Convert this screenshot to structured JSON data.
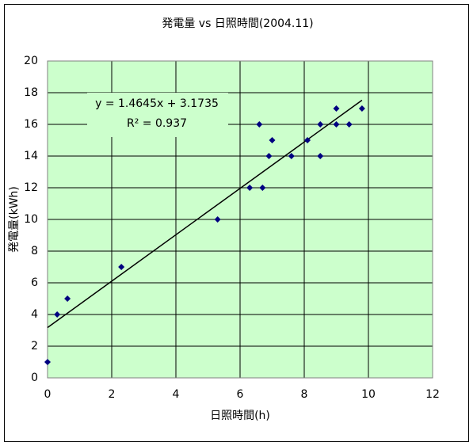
{
  "chart_data": {
    "type": "scatter",
    "title": "発電量 vs 日照時間(2004.11)",
    "x_label": "日照時間(h)",
    "y_label": "発電量(kWh)",
    "x": [
      0,
      0.3,
      0.62,
      2.3,
      5.3,
      6.3,
      6.7,
      6.6,
      6.9,
      7.0,
      7.6,
      8.1,
      8.5,
      8.5,
      9.0,
      9.0,
      9.4,
      9.8
    ],
    "y": [
      1,
      4,
      5,
      7,
      10,
      12,
      12,
      16,
      14,
      15,
      14,
      15,
      16,
      14,
      17,
      16,
      16,
      17
    ],
    "color": "#000080",
    "trendline": {
      "slope": 1.4645,
      "intercept": 3.1735,
      "color": "#000000"
    },
    "annotations": [
      "y = 1.4645x + 3.1735",
      "R² = 0.937"
    ],
    "xlim": [
      0,
      12
    ],
    "xticks": [
      0,
      2,
      4,
      6,
      8,
      10,
      12
    ],
    "ylim": [
      0,
      20
    ],
    "yticks": [
      0,
      2,
      4,
      6,
      8,
      10,
      12,
      14,
      16,
      18,
      20
    ],
    "grid": true,
    "plot_background": "#ccffcc"
  }
}
